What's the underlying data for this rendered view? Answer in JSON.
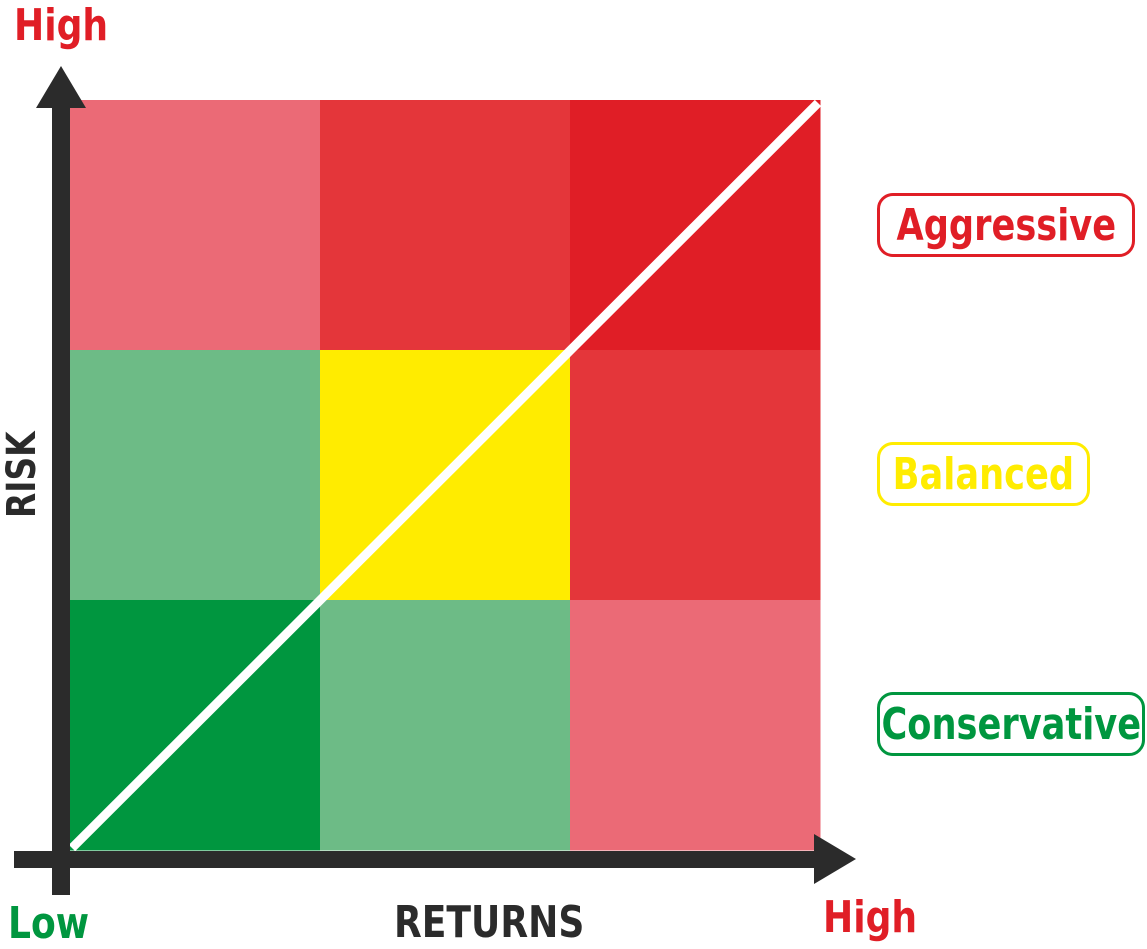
{
  "axes": {
    "y_title": "RISK",
    "x_title": "RETURNS",
    "y_high": "High",
    "x_low": "Low",
    "x_high": "High"
  },
  "profiles": [
    {
      "label": "Aggressive",
      "color": "#e01e26"
    },
    {
      "label": "Balanced",
      "color": "#ffec00"
    },
    {
      "label": "Conservative",
      "color": "#00963f"
    }
  ],
  "matrix": {
    "rows": 3,
    "cols": 3,
    "cell_colors": [
      [
        "#eb6a76",
        "#e4363a",
        "#e01e26"
      ],
      [
        "#6dbb86",
        "#ffec00",
        "#e4363a"
      ],
      [
        "#00963f",
        "#6dbb86",
        "#eb6a76"
      ]
    ],
    "diagonal_color": "#ffffff"
  },
  "colors": {
    "axis": "#2b2b2b",
    "low_label": "#00963f",
    "high_label": "#e01e26"
  }
}
